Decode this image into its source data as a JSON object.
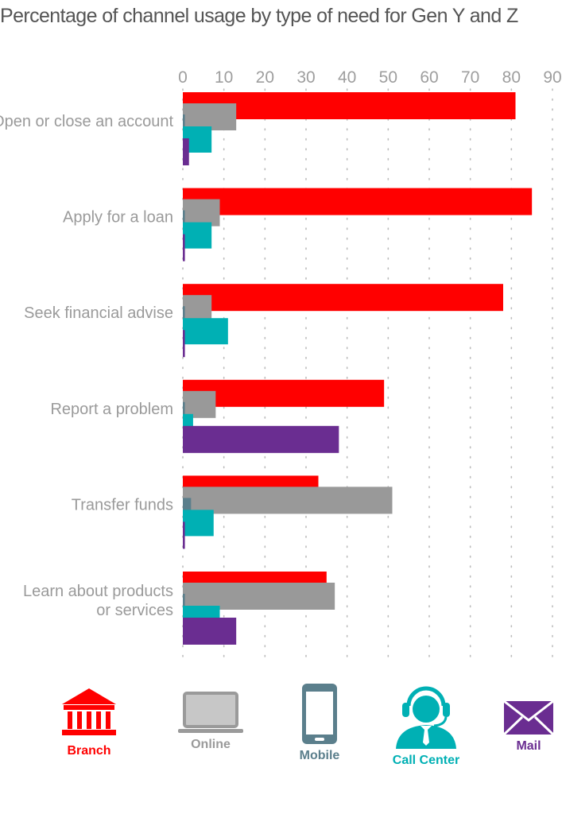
{
  "chart_data": {
    "type": "bar",
    "orientation": "horizontal",
    "title": "Percentage of channel usage by type of need for Gen Y and Z",
    "categories": [
      "Open or close an account",
      "Apply for a loan",
      "Seek financial advise",
      "Report a problem",
      "Transfer funds",
      "Learn about products or services"
    ],
    "category_lines": [
      [
        "Open or close an account"
      ],
      [
        "Apply for a loan"
      ],
      [
        "Seek financial advise"
      ],
      [
        "Report a problem"
      ],
      [
        "Transfer funds"
      ],
      [
        "Learn about products",
        "or services"
      ]
    ],
    "xlim": [
      0,
      90
    ],
    "xticks": [
      0,
      10,
      20,
      30,
      40,
      50,
      60,
      70,
      80,
      90
    ],
    "grid": "dotted vertical",
    "series": [
      {
        "name": "Branch",
        "color": "#ff0000",
        "values": [
          81,
          85,
          78,
          49,
          33,
          35
        ]
      },
      {
        "name": "Online",
        "color": "#999999",
        "values": [
          13,
          9,
          7,
          8,
          51,
          37
        ]
      },
      {
        "name": "Mobile",
        "color": "#5b7f8c",
        "values": [
          0.5,
          0.5,
          0.5,
          0.5,
          2,
          0.5
        ]
      },
      {
        "name": "Call Center",
        "color": "#00b0b4",
        "values": [
          7,
          7,
          11,
          2.5,
          7.5,
          9
        ]
      },
      {
        "name": "Mail",
        "color": "#6a2d91",
        "values": [
          1.5,
          0.5,
          0.5,
          38,
          0.5,
          13
        ]
      }
    ]
  },
  "legend": [
    {
      "label": "Branch",
      "icon": "bank-building-icon",
      "color": "#ff0000"
    },
    {
      "label": "Online",
      "icon": "laptop-icon",
      "color": "#9a9a9a"
    },
    {
      "label": "Mobile",
      "icon": "mobile-phone-icon",
      "color": "#5b7f8c"
    },
    {
      "label": "Call Center",
      "icon": "call-center-agent-icon",
      "color": "#00b0b4"
    },
    {
      "label": "Mail",
      "icon": "mail-envelope-icon",
      "color": "#6a2d91"
    }
  ]
}
